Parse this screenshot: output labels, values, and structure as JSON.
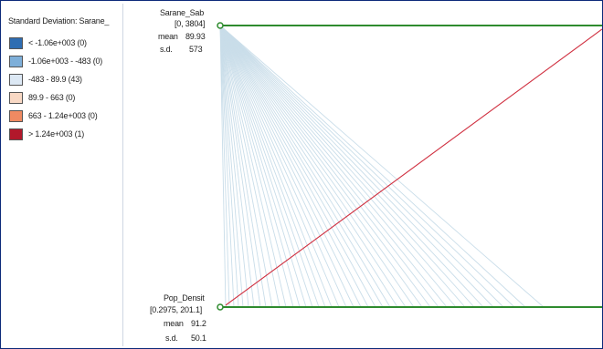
{
  "legend": {
    "title": "Standard Deviation: Sarane_",
    "items": [
      {
        "label": "< -1.06e+003 (0)",
        "color": "#2e6db2"
      },
      {
        "label": "-1.06e+003 - -483 (0)",
        "color": "#7eafd9"
      },
      {
        "label": "-483 - 89.9 (43)",
        "color": "#dce8f4"
      },
      {
        "label": "89.9 - 663 (0)",
        "color": "#f8d8c4"
      },
      {
        "label": "663 - 1.24e+003 (0)",
        "color": "#ef8a62"
      },
      {
        "label": "> 1.24e+003 (1)",
        "color": "#b2182b"
      }
    ]
  },
  "top_axis": {
    "name": "Sarane_Sab",
    "range": "[0, 3804]",
    "mean_label": "mean",
    "mean_value": "89.93",
    "sd_label": "s.d.",
    "sd_value": "573"
  },
  "bottom_axis": {
    "name": "Pop_Densit",
    "range": "[0.2975, 201.1]",
    "mean_label": "mean",
    "mean_value": "91.2",
    "sd_label": "s.d.",
    "sd_value": "50.1"
  },
  "colors": {
    "axis_line": "#2e8b2e",
    "low_lines": "#c9dde9",
    "high_line": "#d03040"
  }
}
